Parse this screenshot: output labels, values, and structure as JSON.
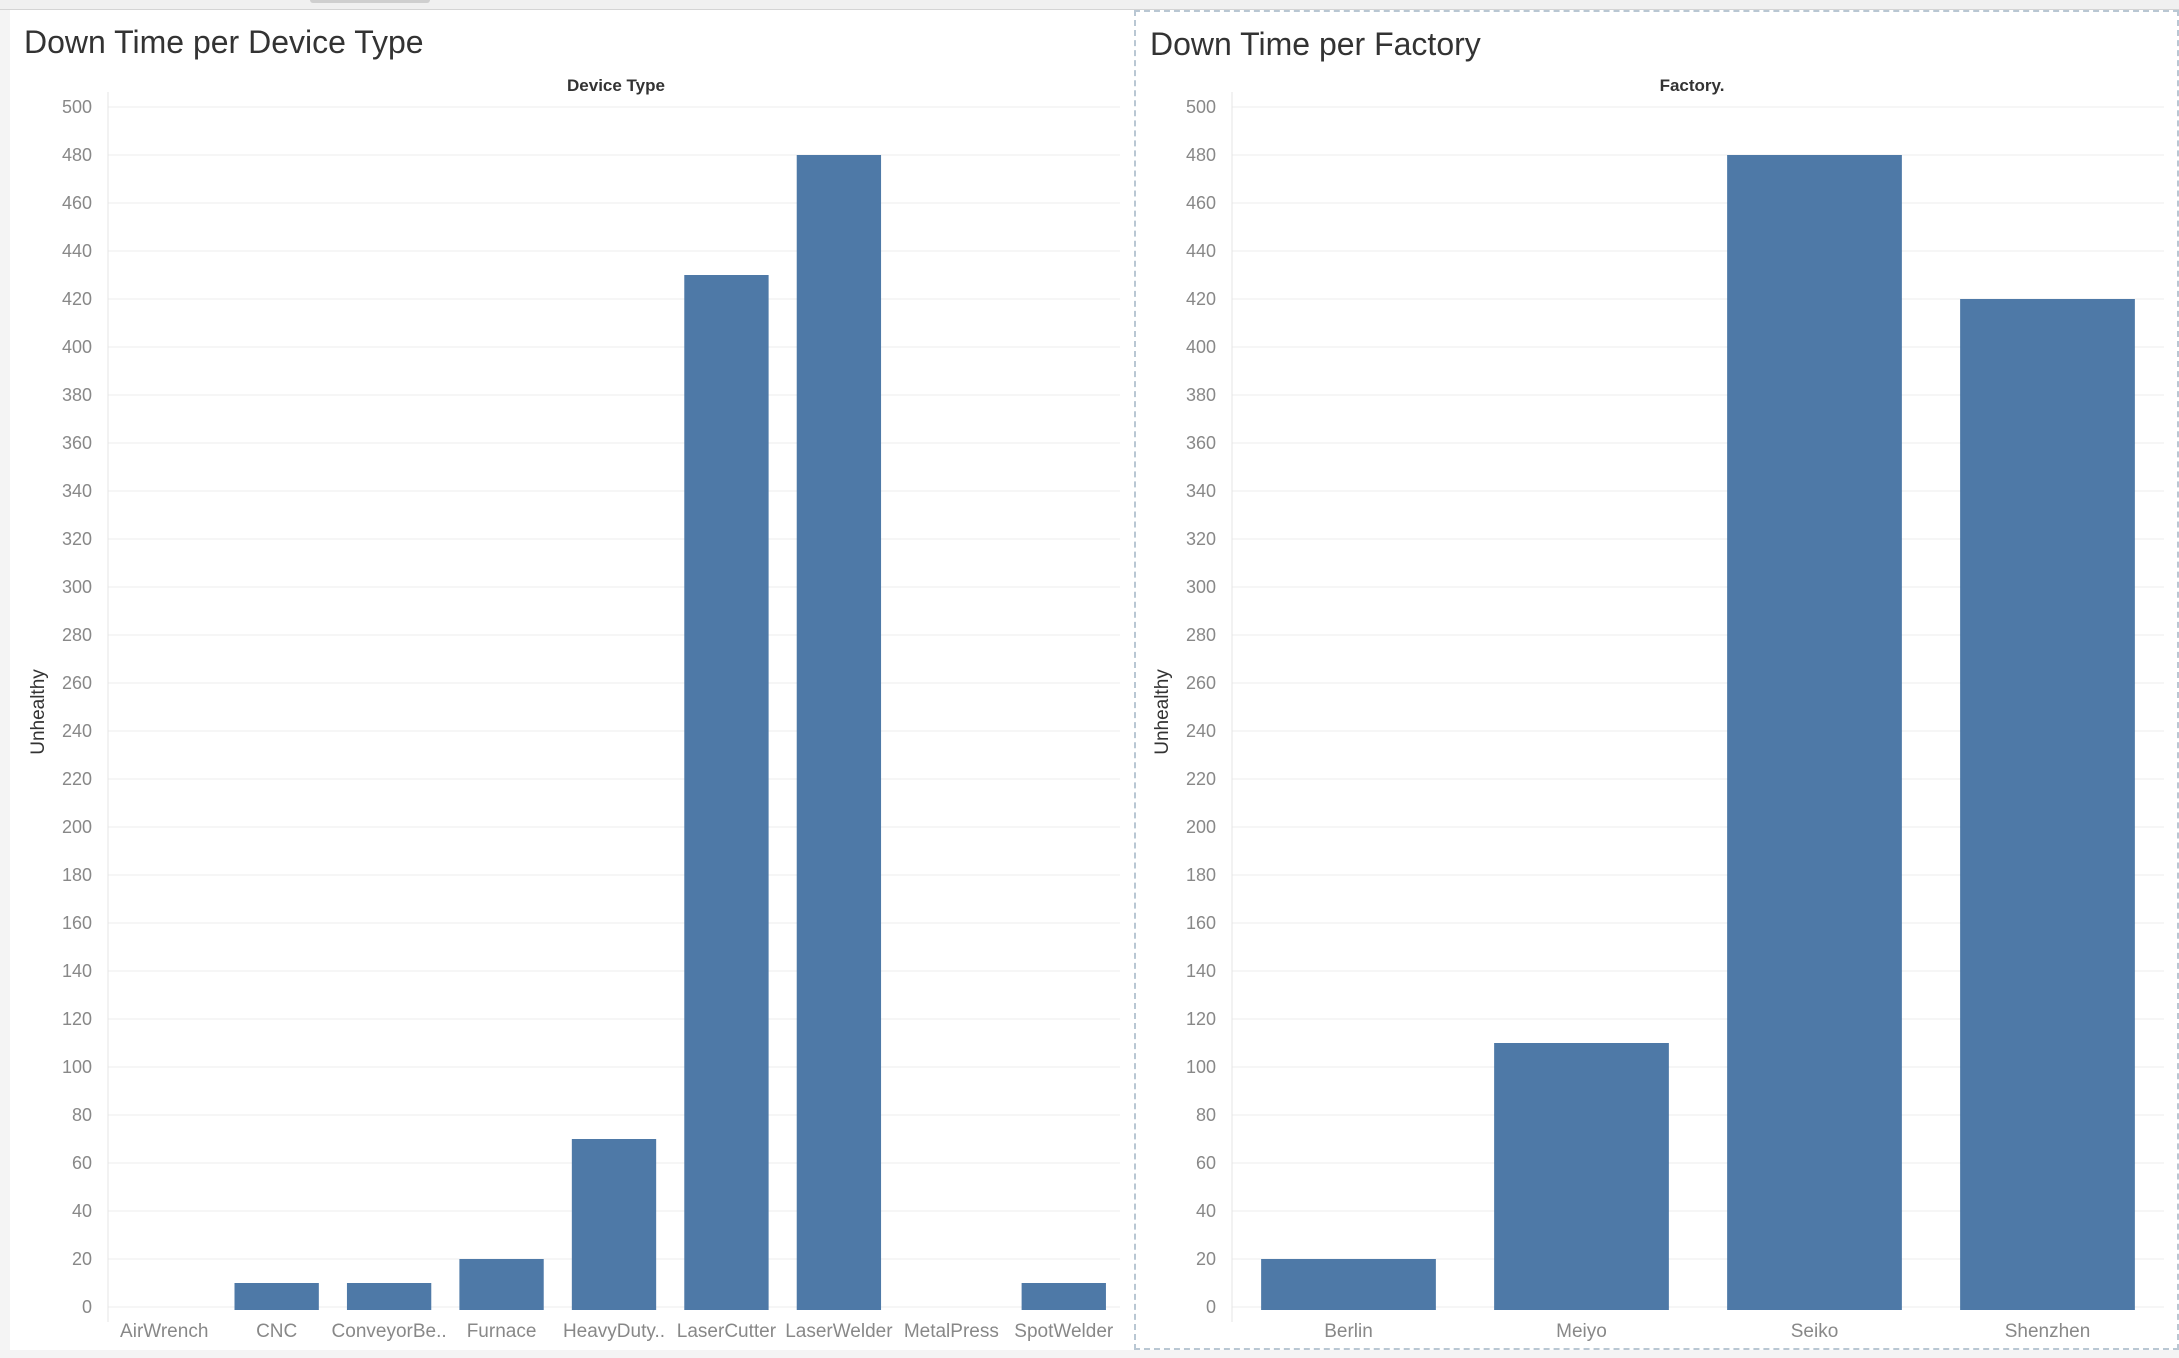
{
  "colors": {
    "bar": "#4e79a7",
    "grid": "#eeeeee",
    "tick_text": "#888888",
    "title_text": "#333333"
  },
  "charts": [
    {
      "title": "Down Time per Device Type"
    },
    {
      "title": "Down Time per Factory"
    }
  ],
  "chart_data": [
    {
      "type": "bar",
      "title": "Down Time per Device Type",
      "column_header": "Device Type",
      "ylabel": "Unhealthy",
      "categories": [
        "AirWrench",
        "CNC",
        "ConveyorBe..",
        "Furnace",
        "HeavyDuty..",
        "LaserCutter",
        "LaserWelder",
        "MetalPress",
        "SpotWelder"
      ],
      "values": [
        0,
        10,
        10,
        20,
        70,
        430,
        480,
        0,
        10
      ],
      "yticks": [
        0,
        20,
        40,
        60,
        80,
        100,
        120,
        140,
        160,
        180,
        200,
        220,
        240,
        260,
        280,
        300,
        320,
        340,
        360,
        380,
        400,
        420,
        440,
        460,
        480,
        500
      ],
      "ylim": [
        0,
        500
      ],
      "grid": true
    },
    {
      "type": "bar",
      "title": "Down Time per Factory",
      "column_header": "Factory.",
      "ylabel": "Unhealthy",
      "categories": [
        "Berlin",
        "Meiyo",
        "Seiko",
        "Shenzhen"
      ],
      "values": [
        20,
        110,
        480,
        420
      ],
      "yticks": [
        0,
        20,
        40,
        60,
        80,
        100,
        120,
        140,
        160,
        180,
        200,
        220,
        240,
        260,
        280,
        300,
        320,
        340,
        360,
        380,
        400,
        420,
        440,
        460,
        480,
        500
      ],
      "ylim": [
        0,
        500
      ],
      "grid": true
    }
  ]
}
